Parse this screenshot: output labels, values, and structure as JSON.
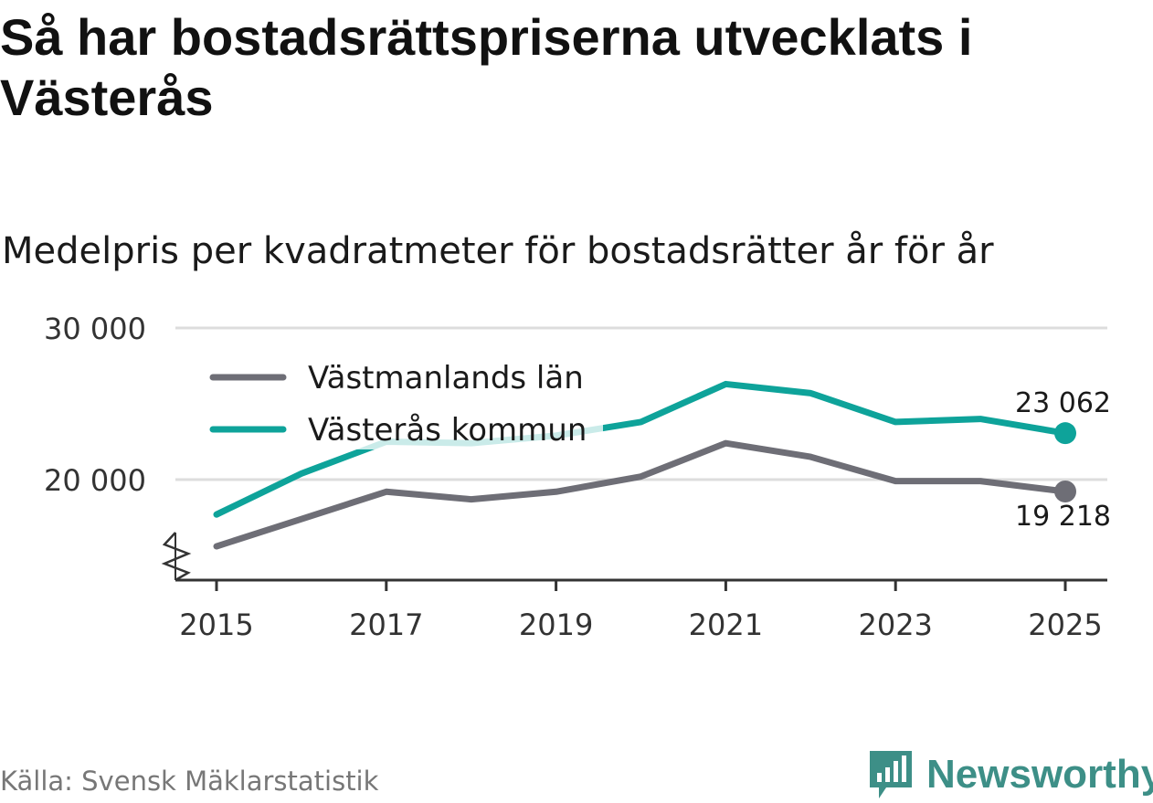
{
  "title": "Så har bostadsrättspriserna utvecklats i Västerås",
  "subtitle": "Medelpris per kvadratmeter för bostadsrätter år för år",
  "source": "Källa: Svensk Mäklarstatistik",
  "brand": {
    "name": "Newsworthy",
    "icon": "newsworthy-logo-icon"
  },
  "colors": {
    "lan": "#6e6e76",
    "kommun": "#0ea39a",
    "grid": "#dddddd",
    "axis": "#333333",
    "brand": "#3d8f87"
  },
  "chart_data": {
    "type": "line",
    "title": "Så har bostadsrättspriserna utvecklats i Västerås",
    "subtitle": "Medelpris per kvadratmeter för bostadsrätter år för år",
    "xlabel": "",
    "ylabel": "",
    "x": [
      2015,
      2016,
      2017,
      2018,
      2019,
      2020,
      2021,
      2022,
      2023,
      2024,
      2025
    ],
    "xticks": [
      "2015",
      "2017",
      "2019",
      "2021",
      "2023",
      "2025"
    ],
    "yticks": [
      20000,
      30000
    ],
    "ytick_labels": [
      "20 000",
      "30 000"
    ],
    "ylim": [
      13500,
      30000
    ],
    "axis_break": true,
    "grid": true,
    "legend_position": "top-left",
    "series": [
      {
        "name": "Västmanlands län",
        "values": [
          15600,
          17400,
          19200,
          18700,
          19200,
          20200,
          22400,
          21500,
          19900,
          19900,
          19218
        ],
        "end_label": "19 218"
      },
      {
        "name": "Västerås kommun",
        "values": [
          17700,
          20400,
          22500,
          22400,
          22900,
          23800,
          26300,
          25700,
          23800,
          24000,
          23062
        ],
        "end_label": "23 062"
      }
    ]
  }
}
